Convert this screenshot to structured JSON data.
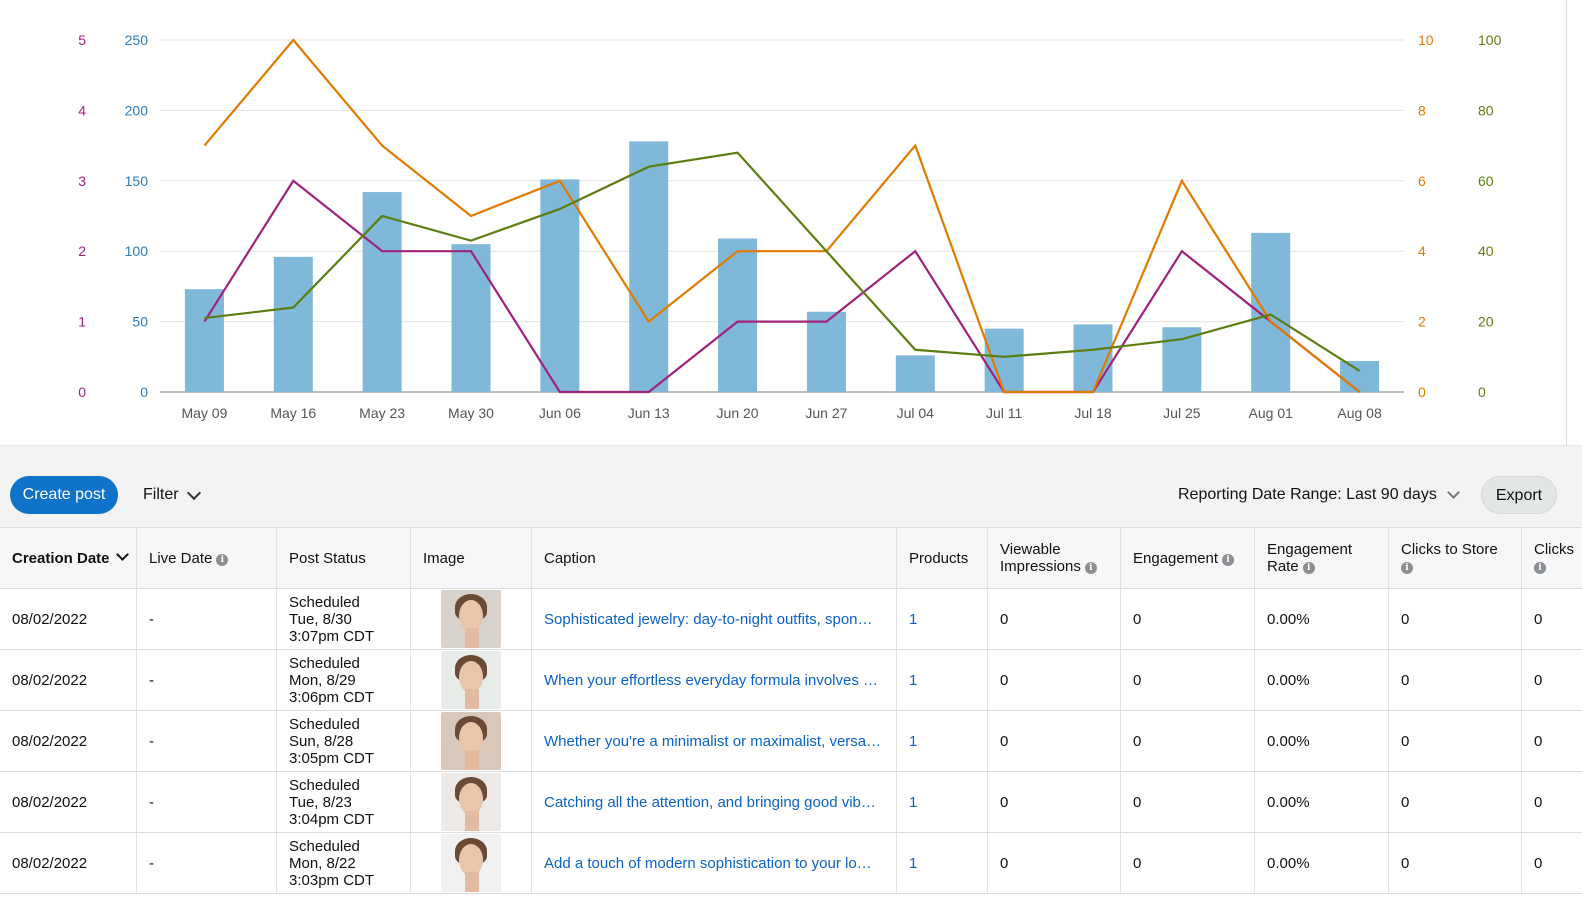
{
  "chart_data": {
    "type": "bar",
    "categories": [
      "May 09",
      "May 16",
      "May 23",
      "May 30",
      "Jun 06",
      "Jun 13",
      "Jun 20",
      "Jun 27",
      "Jul 04",
      "Jul 11",
      "Jul 18",
      "Jul 25",
      "Aug 01",
      "Aug 08"
    ],
    "axes": {
      "left_outer": {
        "ticks": [
          "0",
          "1",
          "2",
          "3",
          "4",
          "5"
        ],
        "ylim": [
          0,
          5
        ],
        "color": "#a0237a"
      },
      "left_inner": {
        "ticks": [
          "0",
          "50",
          "100",
          "150",
          "200",
          "250"
        ],
        "ylim": [
          0,
          250
        ],
        "color": "#2e7bb7"
      },
      "right_inner": {
        "ticks": [
          "0",
          "2",
          "4",
          "6",
          "8",
          "10"
        ],
        "ylim": [
          0,
          10
        ],
        "color": "#e07b00"
      },
      "right_outer": {
        "ticks": [
          "0",
          "20",
          "40",
          "60",
          "80",
          "100"
        ],
        "ylim": [
          0,
          100
        ],
        "color": "#5c7d10"
      }
    },
    "series": [
      {
        "kind": "bar",
        "axis": "left_inner",
        "color": "#7fb8d8",
        "values": [
          73,
          96,
          142,
          105,
          151,
          178,
          109,
          57,
          26,
          45,
          48,
          46,
          113,
          22
        ]
      },
      {
        "kind": "line",
        "axis": "left_outer",
        "color": "#a0237a",
        "values": [
          1,
          3,
          2,
          2,
          0,
          0,
          1,
          1,
          2,
          0,
          0,
          2,
          1,
          0
        ]
      },
      {
        "kind": "line",
        "axis": "right_inner",
        "color": "#e07b00",
        "values": [
          7,
          10,
          7,
          5,
          6,
          2,
          4,
          4,
          7,
          0,
          0,
          6,
          2,
          0
        ]
      },
      {
        "kind": "line",
        "axis": "right_outer",
        "color": "#5c7d10",
        "values": [
          21,
          24,
          50,
          43,
          52,
          64,
          68,
          40,
          12,
          10,
          12,
          15,
          22,
          6
        ]
      }
    ],
    "grid": true
  },
  "toolbar": {
    "create_label": "Create post",
    "filter_label": "Filter",
    "range_label": "Reporting Date Range: Last 90 days",
    "export_label": "Export"
  },
  "table": {
    "headers": {
      "creation_date": "Creation Date",
      "live_date": "Live Date",
      "post_status": "Post Status",
      "image": "Image",
      "caption": "Caption",
      "products": "Products",
      "viewable_1": "Viewable",
      "viewable_2": "Impressions",
      "engagement": "Engagement",
      "eng_rate_1": "Engagement",
      "eng_rate_2": "Rate",
      "clicks_store": "Clicks to Store",
      "clicks_trunc": "Clicks"
    },
    "rows": [
      {
        "creation": "08/02/2022",
        "live": "-",
        "status1": "Scheduled",
        "status2": "Tue, 8/30",
        "status3": "3:07pm CDT",
        "caption": "Sophisticated jewelry: day-to-night outfits, spon…",
        "products": "1",
        "impressions": "0",
        "engagement": "0",
        "rate": "0.00%",
        "clicks_store": "0",
        "clicks": "0"
      },
      {
        "creation": "08/02/2022",
        "live": "-",
        "status1": "Scheduled",
        "status2": "Mon, 8/29",
        "status3": "3:06pm CDT",
        "caption": "When your effortless everyday formula involves …",
        "products": "1",
        "impressions": "0",
        "engagement": "0",
        "rate": "0.00%",
        "clicks_store": "0",
        "clicks": "0"
      },
      {
        "creation": "08/02/2022",
        "live": "-",
        "status1": "Scheduled",
        "status2": "Sun, 8/28",
        "status3": "3:05pm CDT",
        "caption": "Whether you're a minimalist or maximalist, versa…",
        "products": "1",
        "impressions": "0",
        "engagement": "0",
        "rate": "0.00%",
        "clicks_store": "0",
        "clicks": "0"
      },
      {
        "creation": "08/02/2022",
        "live": "-",
        "status1": "Scheduled",
        "status2": "Tue, 8/23",
        "status3": "3:04pm CDT",
        "caption": "Catching all the attention, and bringing good vib…",
        "products": "1",
        "impressions": "0",
        "engagement": "0",
        "rate": "0.00%",
        "clicks_store": "0",
        "clicks": "0"
      },
      {
        "creation": "08/02/2022",
        "live": "-",
        "status1": "Scheduled",
        "status2": "Mon, 8/22",
        "status3": "3:03pm CDT",
        "caption": "Add a touch of modern sophistication to your lo…",
        "products": "1",
        "impressions": "0",
        "engagement": "0",
        "rate": "0.00%",
        "clicks_store": "0",
        "clicks": "0"
      }
    ]
  }
}
